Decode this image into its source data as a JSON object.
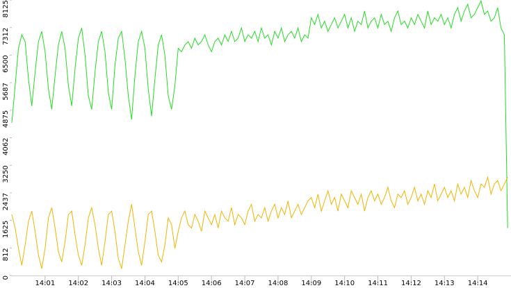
{
  "chart_data": {
    "type": "line",
    "x": [
      50400,
      50406,
      50412,
      50418,
      50424,
      50430,
      50436,
      50442,
      50448,
      50454,
      50460,
      50466,
      50472,
      50478,
      50484,
      50490,
      50496,
      50502,
      50508,
      50514,
      50520,
      50526,
      50532,
      50538,
      50544,
      50550,
      50556,
      50562,
      50568,
      50574,
      50580,
      50586,
      50592,
      50598,
      50604,
      50610,
      50616,
      50622,
      50628,
      50634,
      50640,
      50646,
      50652,
      50658,
      50664,
      50670,
      50676,
      50682,
      50688,
      50694,
      50700,
      50706,
      50712,
      50718,
      50724,
      50730,
      50736,
      50742,
      50748,
      50754,
      50760,
      50766,
      50772,
      50778,
      50784,
      50790,
      50796,
      50802,
      50808,
      50814,
      50820,
      50826,
      50832,
      50838,
      50844,
      50850,
      50856,
      50862,
      50868,
      50874,
      50880,
      50886,
      50892,
      50898,
      50904,
      50910,
      50916,
      50922,
      50928,
      50934,
      50940,
      50946,
      50952,
      50958,
      50964,
      50970,
      50976,
      50982,
      50988,
      50994,
      51000,
      51006,
      51012,
      51018,
      51024,
      51030,
      51036,
      51042,
      51048,
      51054,
      51060,
      51066,
      51072,
      51078,
      51084,
      51090,
      51096,
      51102,
      51108,
      51114,
      51120,
      51126,
      51132,
      51138,
      51144,
      51150,
      51156,
      51162,
      51168,
      51174,
      51180,
      51186,
      51192,
      51198,
      51204,
      51210,
      51216,
      51222,
      51228,
      51234,
      51240,
      51246,
      51252,
      51258,
      51264,
      51270,
      51276,
      51282,
      51288,
      51294
    ],
    "series": [
      {
        "color": "#22dd22",
        "values": [
          4500,
          5600,
          6700,
          7100,
          6900,
          5800,
          5000,
          6000,
          6900,
          7200,
          6600,
          5500,
          4900,
          5900,
          6800,
          7200,
          6700,
          5600,
          5000,
          6100,
          7000,
          7300,
          6500,
          5300,
          4900,
          6000,
          6900,
          7200,
          6600,
          5400,
          4900,
          6200,
          7000,
          7200,
          6400,
          5300,
          4600,
          5900,
          6900,
          7200,
          6700,
          5500,
          4700,
          5800,
          6800,
          7100,
          6500,
          5300,
          4900,
          5600,
          6700,
          6600,
          6800,
          6900,
          6700,
          7000,
          6800,
          6900,
          7100,
          6800,
          6600,
          6900,
          7000,
          6800,
          7100,
          6900,
          7200,
          6900,
          7000,
          7300,
          6900,
          7100,
          7000,
          7200,
          6900,
          7300,
          7000,
          7100,
          6800,
          7200,
          7000,
          7300,
          6900,
          7100,
          7200,
          7000,
          7300,
          6900,
          7100,
          7000,
          7600,
          7400,
          7700,
          7300,
          7500,
          7200,
          7400,
          7600,
          7300,
          7500,
          7700,
          7300,
          7600,
          7200,
          7500,
          7400,
          7800,
          7300,
          7500,
          7600,
          7300,
          7700,
          7400,
          7500,
          7200,
          7600,
          7800,
          7400,
          7500,
          7300,
          7600,
          7400,
          7700,
          7500,
          7300,
          7800,
          7400,
          7600,
          7500,
          7700,
          7400,
          7600,
          7300,
          7700,
          7900,
          7500,
          7800,
          8000,
          7600,
          7700,
          7900,
          8100,
          7700,
          7800,
          7500,
          7600,
          7900,
          7300,
          7100,
          1400
        ]
      },
      {
        "color": "#f0b400",
        "values": [
          1800,
          1400,
          800,
          300,
          900,
          1600,
          1900,
          1300,
          600,
          200,
          800,
          1700,
          2000,
          1400,
          700,
          400,
          1000,
          1800,
          1900,
          1200,
          600,
          300,
          900,
          1700,
          2000,
          1500,
          800,
          300,
          1000,
          1800,
          1900,
          1300,
          500,
          200,
          900,
          1600,
          2100,
          1400,
          700,
          300,
          1000,
          1800,
          1900,
          1300,
          600,
          400,
          900,
          1700,
          1500,
          800,
          1300,
          1700,
          1900,
          1500,
          1400,
          1800,
          1600,
          1300,
          1900,
          1700,
          1500,
          1800,
          1400,
          1900,
          1700,
          1600,
          2000,
          1500,
          1800,
          1700,
          1500,
          1900,
          2100,
          1600,
          1800,
          1700,
          2000,
          1600,
          1900,
          2100,
          1700,
          2000,
          1800,
          2200,
          1700,
          1900,
          2100,
          1800,
          2000,
          2200,
          2300,
          2000,
          2400,
          1900,
          2200,
          2500,
          2100,
          2300,
          1900,
          2400,
          2200,
          2000,
          2500,
          2300,
          2100,
          2400,
          1900,
          2300,
          2500,
          2200,
          2400,
          2100,
          2300,
          2600,
          2200,
          2000,
          2400,
          2300,
          2500,
          2100,
          2300,
          2600,
          2200,
          2400,
          2100,
          2500,
          2300,
          2700,
          2200,
          2400,
          2600,
          2300,
          2500,
          2200,
          2700,
          2400,
          2600,
          2300,
          2800,
          2500,
          2300,
          2700,
          2600,
          2900,
          2400,
          2700,
          2800,
          2500,
          2700,
          2900
        ]
      }
    ],
    "xlim": [
      50400,
      51300
    ],
    "xticks": [
      {
        "value": 50460,
        "label": "14:01"
      },
      {
        "value": 50520,
        "label": "14:02"
      },
      {
        "value": 50580,
        "label": "14:03"
      },
      {
        "value": 50640,
        "label": "14:04"
      },
      {
        "value": 50700,
        "label": "14:05"
      },
      {
        "value": 50760,
        "label": "14:06"
      },
      {
        "value": 50820,
        "label": "14:07"
      },
      {
        "value": 50880,
        "label": "14:08"
      },
      {
        "value": 50940,
        "label": "14:09"
      },
      {
        "value": 51000,
        "label": "14:10"
      },
      {
        "value": 51060,
        "label": "14:11"
      },
      {
        "value": 51120,
        "label": "14:12"
      },
      {
        "value": 51180,
        "label": "14:13"
      },
      {
        "value": 51240,
        "label": "14:14"
      }
    ],
    "ylim": [
      0,
      8125
    ],
    "yticks": [
      0,
      812,
      1625,
      2437,
      3250,
      4062,
      4875,
      5687,
      6500,
      7312,
      8125
    ]
  }
}
